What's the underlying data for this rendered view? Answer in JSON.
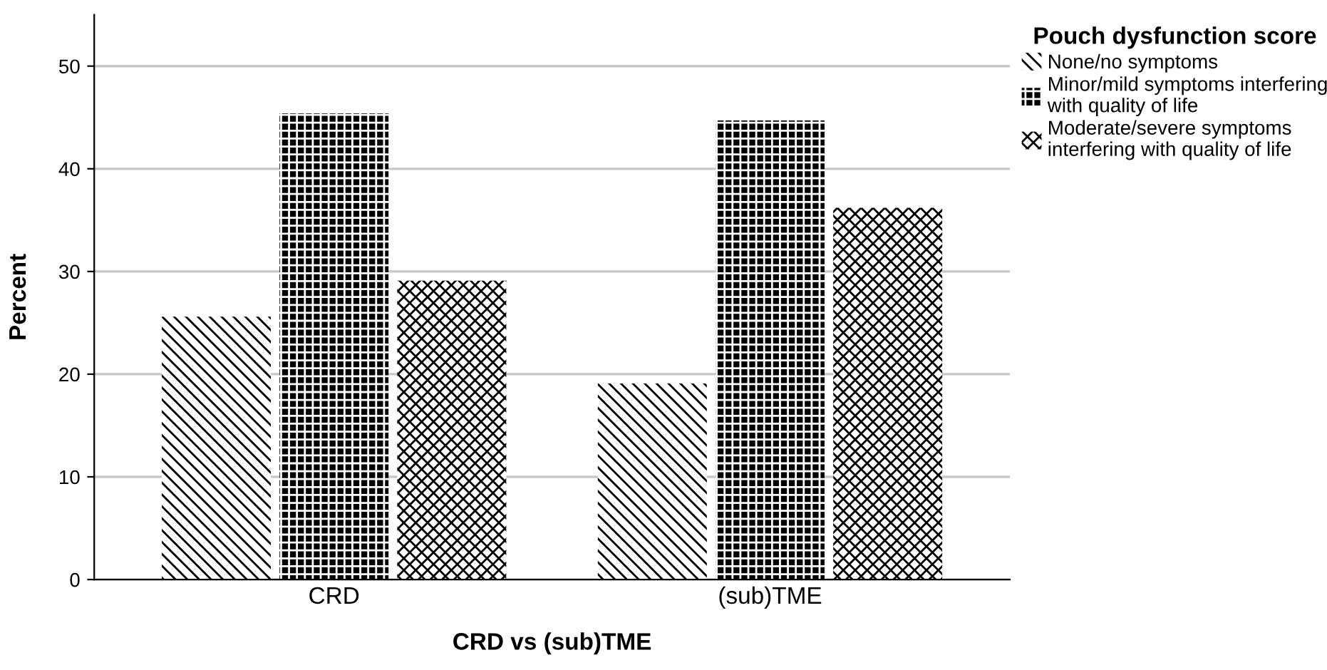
{
  "chart_data": {
    "type": "bar",
    "xlabel": "CRD vs (sub)TME",
    "ylabel": "Percent",
    "legend_title": "Pouch dysfunction score",
    "categories": [
      "CRD",
      "(sub)TME"
    ],
    "series": [
      {
        "name": "None/no symptoms",
        "color": "#000000",
        "values": [
          25.6,
          19.1
        ]
      },
      {
        "name": "Minor/mild symptoms interfering\nwith quality of life",
        "color": "#000000",
        "values": [
          45.4,
          44.7
        ]
      },
      {
        "name": "Moderate/severe symptoms\ninterfering with quality of life",
        "color": "#000000",
        "values": [
          29.1,
          36.2
        ]
      }
    ],
    "ylim": [
      0,
      55
    ],
    "yticks": [
      0,
      10,
      20,
      30,
      40,
      50
    ],
    "grid": "y",
    "legend": "top right"
  }
}
